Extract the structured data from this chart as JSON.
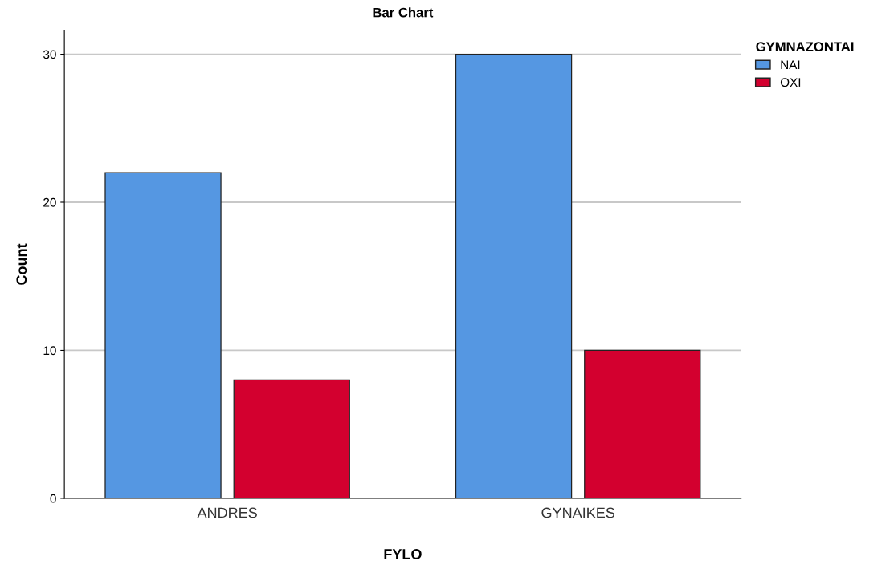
{
  "chart_data": {
    "type": "bar",
    "title": "Bar Chart",
    "xlabel": "FYLO",
    "ylabel": "Count",
    "legend_title": "GYMNAZONTAI",
    "categories": [
      "ANDRES",
      "GYNAIKES"
    ],
    "series": [
      {
        "name": "NAI",
        "color": "#5597e2",
        "values": [
          22,
          30
        ]
      },
      {
        "name": "OXI",
        "color": "#d3002f",
        "values": [
          8,
          10
        ]
      }
    ],
    "ylim": [
      0,
      31.6
    ],
    "yticks": [
      0,
      10,
      20,
      30
    ],
    "grid": "y",
    "legend": "right"
  }
}
